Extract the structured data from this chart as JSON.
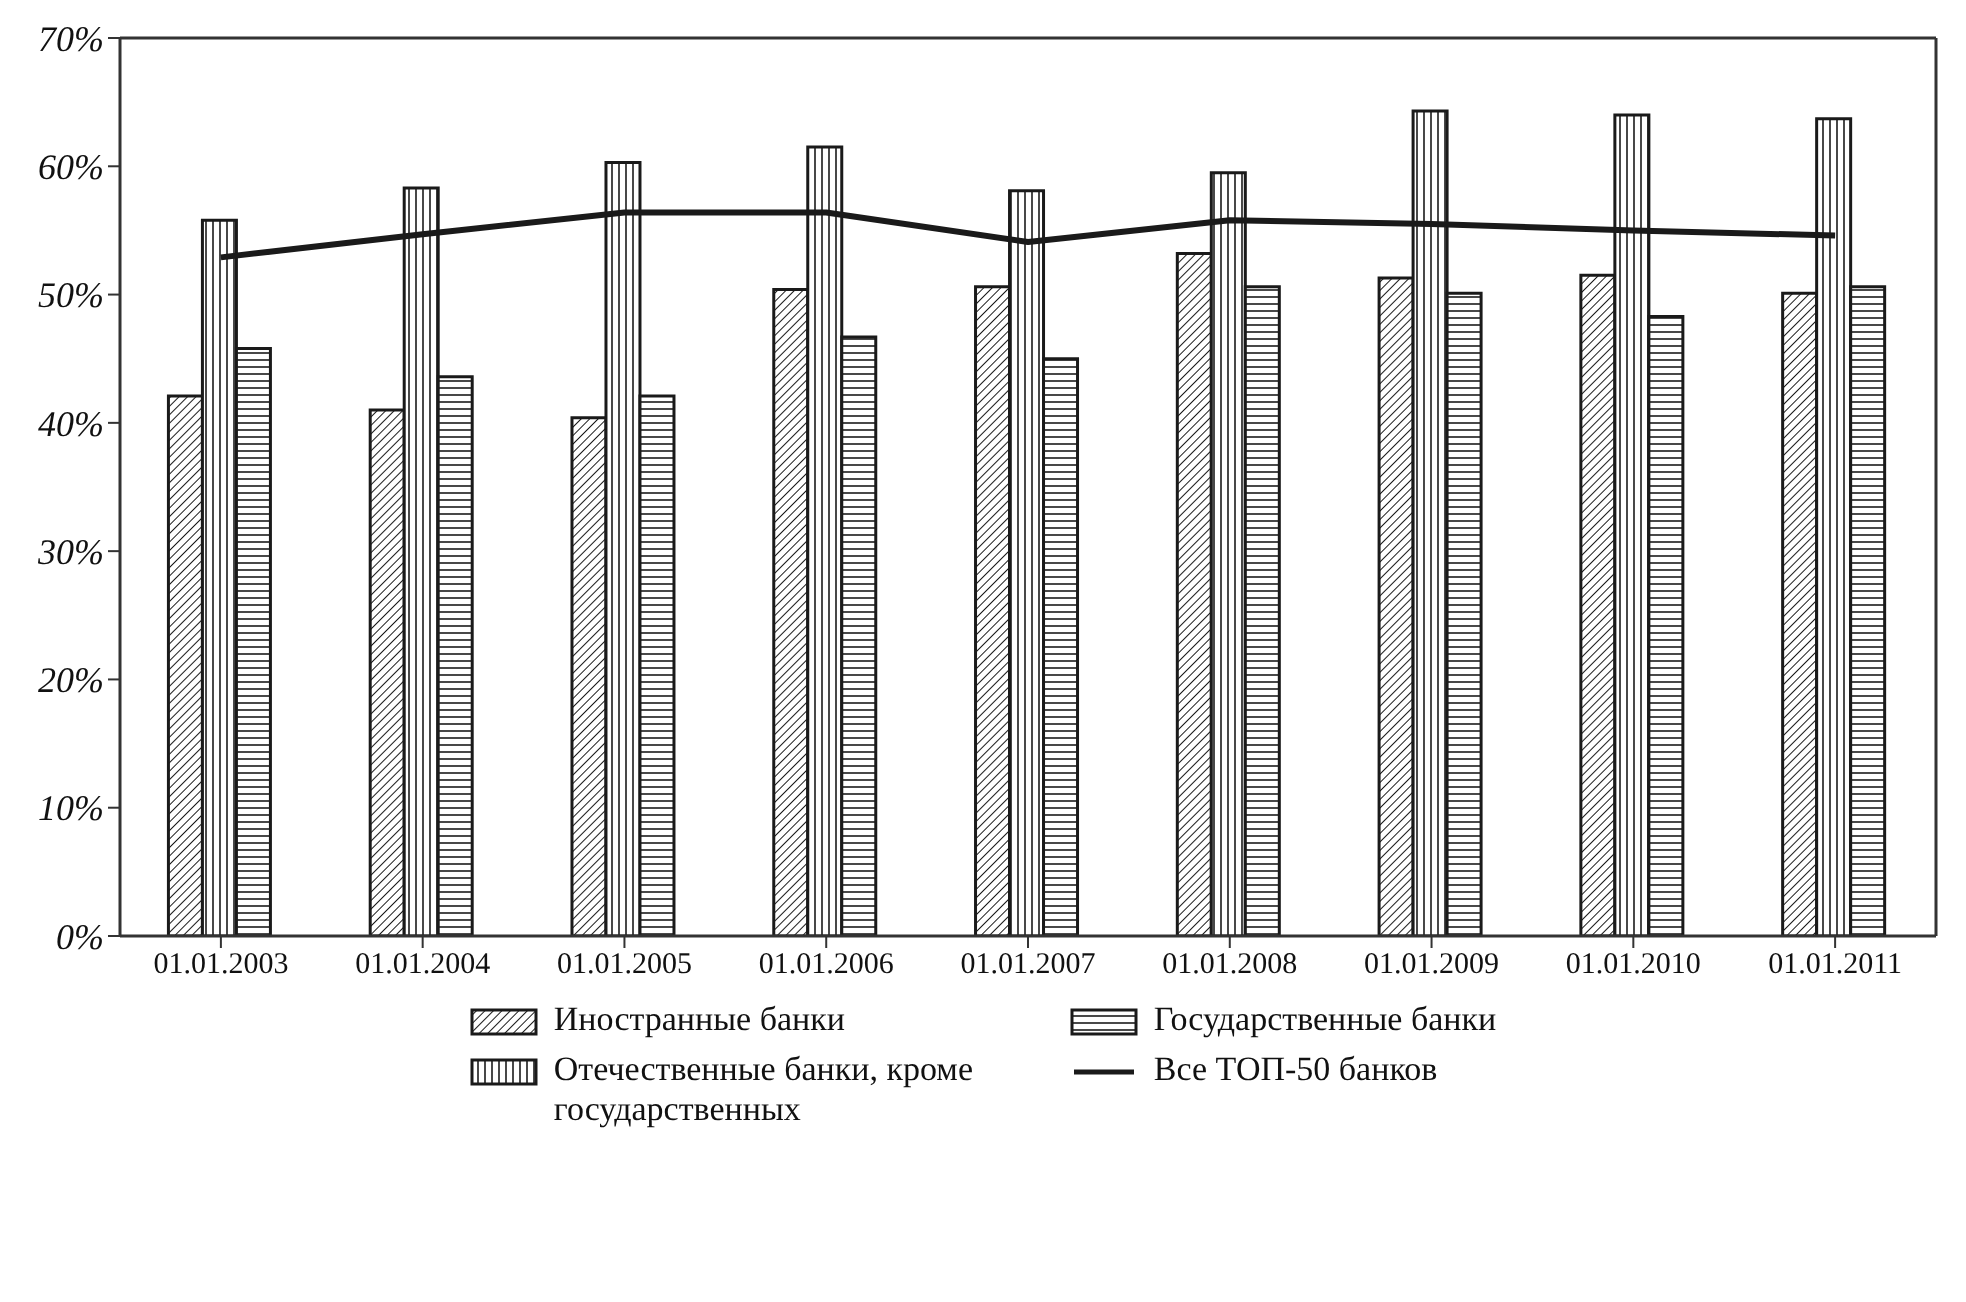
{
  "chart_data": {
    "type": "bar",
    "categories": [
      "01.01.2003",
      "01.01.2004",
      "01.01.2005",
      "01.01.2006",
      "01.01.2007",
      "01.01.2008",
      "01.01.2009",
      "01.01.2010",
      "01.01.2011"
    ],
    "series": [
      {
        "name": "Иностранные банки",
        "color": "#1a1a1a",
        "values": [
          42.1,
          41.0,
          40.4,
          50.4,
          50.6,
          53.2,
          51.3,
          51.5,
          50.1
        ]
      },
      {
        "name": "Отечественные банки, кроме государственных",
        "color": "#1a1a1a",
        "values": [
          55.8,
          58.3,
          60.3,
          61.5,
          58.1,
          59.5,
          64.3,
          64.0,
          63.7
        ]
      },
      {
        "name": "Государственные банки",
        "color": "#1a1a1a",
        "values": [
          45.8,
          43.6,
          42.1,
          46.7,
          45.0,
          50.6,
          50.1,
          48.3,
          50.6
        ]
      },
      {
        "name": "Все ТОП-50 банков",
        "type": "line",
        "color": "#1a1a1a",
        "values": [
          52.9,
          54.7,
          56.4,
          56.4,
          54.1,
          55.8,
          55.5,
          55.0,
          54.6
        ]
      }
    ],
    "ylim": [
      0,
      70
    ],
    "yticks": [
      {
        "value": 0,
        "label": "0%"
      },
      {
        "value": 10,
        "label": "10%"
      },
      {
        "value": 20,
        "label": "20%"
      },
      {
        "value": 30,
        "label": "30%"
      },
      {
        "value": 40,
        "label": "40%"
      },
      {
        "value": 50,
        "label": "50%"
      },
      {
        "value": 60,
        "label": "60%"
      },
      {
        "value": 70,
        "label": "70%"
      }
    ],
    "grid": false,
    "legend": "bottom",
    "line_style": "solid",
    "marker": "none"
  }
}
